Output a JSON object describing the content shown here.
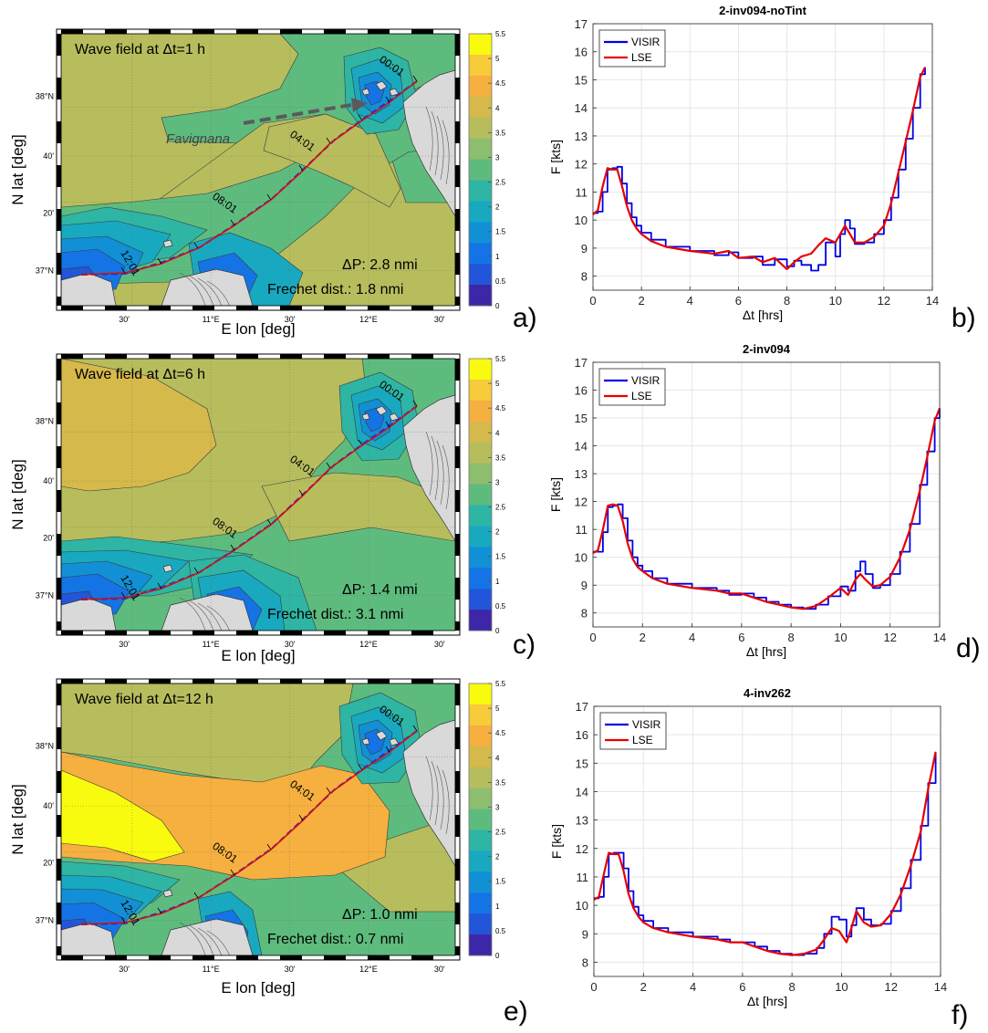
{
  "maps": [
    {
      "letter": "a)",
      "title": "Wave field at Δt=1 h",
      "dp": "ΔP:  2.8 nmi",
      "frechet": "Frechet dist.: 1.8 nmi",
      "annotation": "Favignana",
      "time_labels": [
        "00:01",
        "04:01",
        "08:01",
        "12:01"
      ]
    },
    {
      "letter": "c)",
      "title": "Wave field at Δt=6 h",
      "dp": "ΔP:  1.4 nmi",
      "frechet": "Frechet dist.: 3.1 nmi",
      "time_labels": [
        "00:01",
        "04:01",
        "08:01",
        "12:01"
      ]
    },
    {
      "letter": "e)",
      "title": "Wave field at Δt=12 h",
      "dp": "ΔP:  1.0 nmi",
      "frechet": "Frechet dist.: 0.7 nmi",
      "time_labels": [
        "00:01",
        "04:01",
        "08:01",
        "12:01"
      ]
    }
  ],
  "map_axes": {
    "xlabel": "E lon [deg]",
    "ylabel": "N lat [deg]",
    "xticks": [
      "30'",
      "11°E",
      "30'",
      "12°E",
      "30'"
    ],
    "yticks": [
      "38°N",
      "40'",
      "20'",
      "37°N"
    ]
  },
  "colorbar": {
    "ticks": [
      "5.5",
      "5",
      "4.5",
      "4",
      "3.5",
      "3",
      "2.5",
      "2",
      "1.5",
      "1",
      "0.5",
      "0"
    ],
    "colors": [
      "#f9fb0e",
      "#f7cb3a",
      "#f6b03f",
      "#d6b94b",
      "#b7bd5d",
      "#8dbe6e",
      "#5ebb7e",
      "#2eb5a4",
      "#18a9c0",
      "#1290d6",
      "#1474e6",
      "#2255d9",
      "#3e26a8"
    ]
  },
  "chart_data": [
    {
      "type": "line",
      "panel": "b)",
      "title": "2-inv094-noTint",
      "xlabel": "Δt [hrs]",
      "ylabel": "F [kts]",
      "xlim": [
        0,
        14
      ],
      "ylim": [
        7.5,
        17
      ],
      "xticks": [
        0,
        2,
        4,
        6,
        8,
        10,
        12,
        14
      ],
      "yticks": [
        8,
        9,
        10,
        11,
        12,
        13,
        14,
        15,
        16,
        17
      ],
      "grid": true,
      "legend": "top-left",
      "series": [
        {
          "name": "VISIR",
          "color": "#0000e6",
          "step": true,
          "x": [
            0,
            0.2,
            0.4,
            0.6,
            0.8,
            1.0,
            1.2,
            1.4,
            1.6,
            1.8,
            2.0,
            2.4,
            3.0,
            4.0,
            5.0,
            5.6,
            6.0,
            6.6,
            7.0,
            7.5,
            8.0,
            8.3,
            8.6,
            9.0,
            9.3,
            9.6,
            10.0,
            10.2,
            10.4,
            10.6,
            10.8,
            11.2,
            11.6,
            12.0,
            12.3,
            12.6,
            12.9,
            13.2,
            13.5,
            13.7
          ],
          "y": [
            10.25,
            10.3,
            11.0,
            11.8,
            11.85,
            11.9,
            11.3,
            10.6,
            10.1,
            9.8,
            9.55,
            9.3,
            9.05,
            8.9,
            8.75,
            8.85,
            8.65,
            8.7,
            8.4,
            8.6,
            8.35,
            8.55,
            8.4,
            8.2,
            8.4,
            9.2,
            8.7,
            9.5,
            10.0,
            9.7,
            9.15,
            9.2,
            9.5,
            10.0,
            10.8,
            11.8,
            12.9,
            14.0,
            15.2,
            15.45
          ]
        },
        {
          "name": "LSE",
          "color": "#e60000",
          "step": false,
          "x": [
            0,
            0.2,
            0.4,
            0.6,
            0.8,
            1.0,
            1.2,
            1.4,
            1.6,
            1.8,
            2.0,
            2.4,
            3.0,
            4.0,
            5.0,
            5.6,
            6.0,
            6.6,
            7.0,
            7.5,
            8.0,
            8.3,
            8.6,
            9.0,
            9.3,
            9.6,
            10.0,
            10.2,
            10.4,
            10.6,
            10.8,
            11.2,
            11.6,
            12.0,
            12.3,
            12.6,
            12.9,
            13.2,
            13.5,
            13.7
          ],
          "y": [
            10.2,
            10.35,
            11.2,
            11.85,
            11.8,
            11.8,
            11.2,
            10.5,
            10.0,
            9.7,
            9.5,
            9.25,
            9.05,
            8.9,
            8.8,
            8.9,
            8.65,
            8.7,
            8.5,
            8.65,
            8.25,
            8.5,
            8.7,
            8.8,
            9.1,
            9.35,
            9.2,
            9.5,
            9.8,
            9.5,
            9.2,
            9.2,
            9.4,
            9.8,
            10.6,
            11.7,
            12.8,
            13.9,
            15.1,
            15.45
          ]
        }
      ]
    },
    {
      "type": "line",
      "panel": "d)",
      "title": "2-inv094",
      "xlabel": "Δt [hrs]",
      "ylabel": "F [kts]",
      "xlim": [
        0,
        14
      ],
      "ylim": [
        7.5,
        17
      ],
      "xticks": [
        0,
        2,
        4,
        6,
        8,
        10,
        12,
        14
      ],
      "yticks": [
        8,
        9,
        10,
        11,
        12,
        13,
        14,
        15,
        16,
        17
      ],
      "grid": true,
      "legend": "top-left",
      "series": [
        {
          "name": "VISIR",
          "color": "#0000e6",
          "step": true,
          "x": [
            0,
            0.2,
            0.4,
            0.6,
            0.8,
            1.0,
            1.2,
            1.4,
            1.6,
            1.8,
            2.0,
            2.4,
            3.0,
            4.0,
            5.0,
            5.5,
            6.0,
            6.5,
            7.0,
            7.5,
            8.0,
            8.5,
            9.0,
            9.5,
            10.0,
            10.3,
            10.6,
            10.8,
            11.0,
            11.3,
            11.6,
            12.0,
            12.4,
            12.8,
            13.2,
            13.5,
            13.8,
            14.0
          ],
          "y": [
            10.2,
            10.2,
            10.9,
            11.8,
            11.85,
            11.9,
            11.4,
            10.6,
            10.0,
            9.7,
            9.5,
            9.25,
            9.05,
            8.9,
            8.8,
            8.65,
            8.7,
            8.55,
            8.4,
            8.3,
            8.2,
            8.15,
            8.3,
            8.6,
            8.95,
            8.8,
            9.5,
            9.85,
            9.4,
            8.9,
            9.0,
            9.4,
            10.2,
            11.2,
            12.6,
            13.8,
            15.0,
            15.35
          ]
        },
        {
          "name": "LSE",
          "color": "#e60000",
          "step": false,
          "x": [
            0,
            0.2,
            0.4,
            0.6,
            0.8,
            1.0,
            1.2,
            1.4,
            1.6,
            1.8,
            2.0,
            2.4,
            3.0,
            4.0,
            5.0,
            5.5,
            6.0,
            6.5,
            7.0,
            7.5,
            8.0,
            8.5,
            9.0,
            9.5,
            10.0,
            10.3,
            10.6,
            10.8,
            11.0,
            11.3,
            11.6,
            12.0,
            12.4,
            12.8,
            13.2,
            13.5,
            13.8,
            14.0
          ],
          "y": [
            10.15,
            10.25,
            11.0,
            11.85,
            11.9,
            11.85,
            11.3,
            10.5,
            9.95,
            9.65,
            9.5,
            9.25,
            9.05,
            8.9,
            8.8,
            8.7,
            8.7,
            8.55,
            8.4,
            8.3,
            8.2,
            8.15,
            8.25,
            8.55,
            8.9,
            8.65,
            9.2,
            9.4,
            9.2,
            8.95,
            9.0,
            9.3,
            10.0,
            11.0,
            12.4,
            13.6,
            14.9,
            15.35
          ]
        }
      ]
    },
    {
      "type": "line",
      "panel": "f)",
      "title": "4-inv262",
      "xlabel": "Δt [hrs]",
      "ylabel": "F [kts]",
      "xlim": [
        0,
        14
      ],
      "ylim": [
        7.5,
        17
      ],
      "xticks": [
        0,
        2,
        4,
        6,
        8,
        10,
        12,
        14
      ],
      "yticks": [
        8,
        9,
        10,
        11,
        12,
        13,
        14,
        15,
        16,
        17
      ],
      "grid": true,
      "legend": "top-left",
      "series": [
        {
          "name": "VISIR",
          "color": "#0000e6",
          "step": true,
          "x": [
            0,
            0.2,
            0.4,
            0.6,
            0.8,
            1.0,
            1.2,
            1.4,
            1.6,
            1.8,
            2.0,
            2.4,
            3.0,
            4.0,
            5.0,
            5.5,
            6.0,
            6.5,
            7.0,
            7.5,
            8.0,
            8.5,
            9.0,
            9.3,
            9.6,
            9.9,
            10.2,
            10.4,
            10.6,
            10.9,
            11.2,
            11.6,
            12.0,
            12.4,
            12.8,
            13.2,
            13.5,
            13.8
          ],
          "y": [
            10.25,
            10.3,
            11.0,
            11.8,
            11.85,
            11.85,
            11.3,
            10.5,
            9.95,
            9.65,
            9.45,
            9.2,
            9.05,
            8.9,
            8.8,
            8.7,
            8.7,
            8.55,
            8.4,
            8.3,
            8.25,
            8.3,
            8.5,
            9.0,
            9.6,
            9.5,
            8.9,
            9.3,
            9.9,
            9.5,
            9.3,
            9.35,
            9.8,
            10.6,
            11.6,
            12.8,
            14.3,
            15.4
          ]
        },
        {
          "name": "LSE",
          "color": "#e60000",
          "step": false,
          "x": [
            0,
            0.2,
            0.4,
            0.6,
            0.8,
            1.0,
            1.2,
            1.4,
            1.6,
            1.8,
            2.0,
            2.4,
            3.0,
            4.0,
            5.0,
            5.5,
            6.0,
            6.5,
            7.0,
            7.5,
            8.0,
            8.5,
            9.0,
            9.3,
            9.6,
            9.9,
            10.2,
            10.4,
            10.6,
            10.9,
            11.2,
            11.6,
            12.0,
            12.4,
            12.8,
            13.2,
            13.5,
            13.8
          ],
          "y": [
            10.2,
            10.3,
            11.1,
            11.85,
            11.8,
            11.8,
            11.2,
            10.4,
            9.9,
            9.6,
            9.4,
            9.2,
            9.05,
            8.9,
            8.8,
            8.7,
            8.7,
            8.55,
            8.4,
            8.3,
            8.25,
            8.3,
            8.45,
            8.8,
            9.2,
            9.1,
            8.7,
            9.2,
            9.8,
            9.4,
            9.25,
            9.3,
            9.7,
            10.4,
            11.4,
            12.6,
            14.1,
            15.4
          ]
        }
      ]
    }
  ]
}
